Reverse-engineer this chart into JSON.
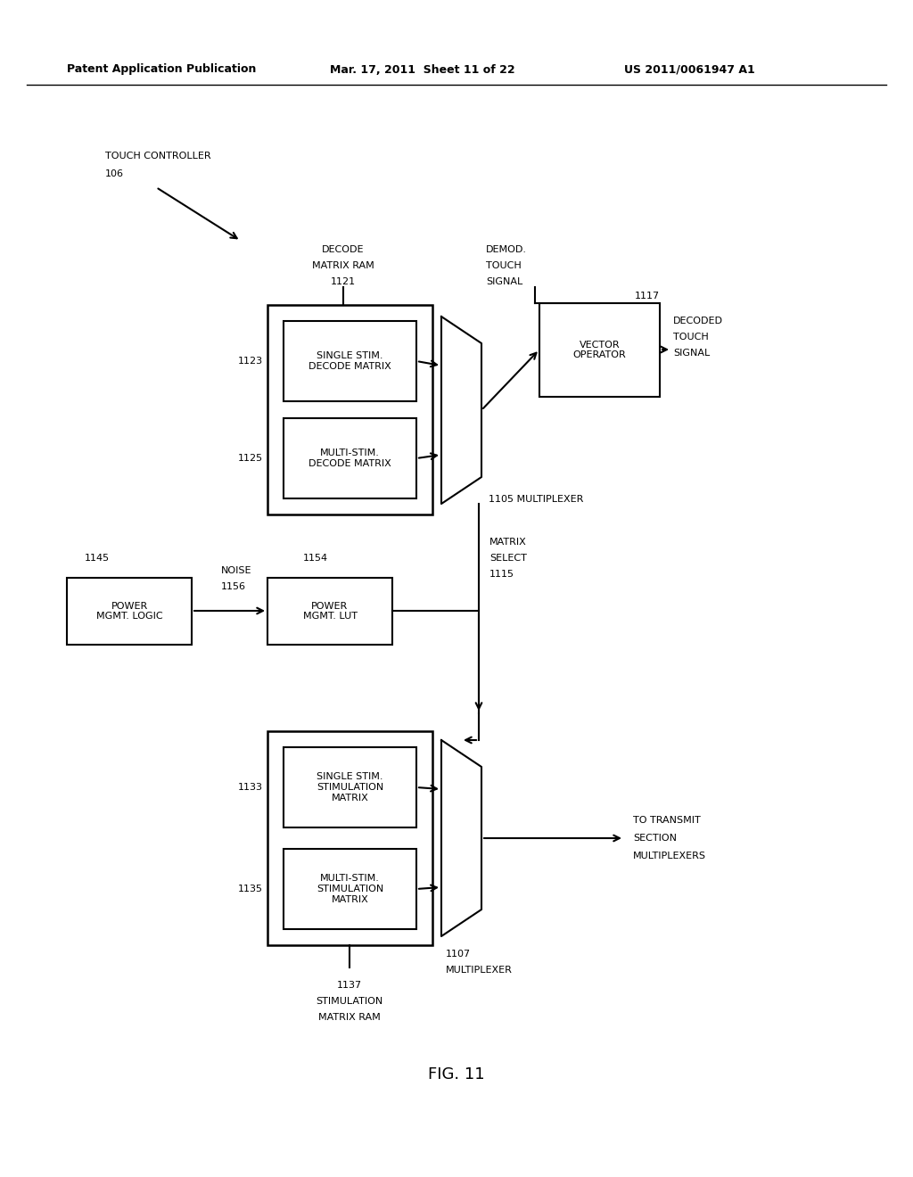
{
  "bg_color": "#ffffff",
  "header_text": "Patent Application Publication",
  "header_date": "Mar. 17, 2011  Sheet 11 of 22",
  "header_patent": "US 2011/0061947 A1",
  "figure_label": "FIG. 11",
  "single_stim_decode_label": "SINGLE STIM.\nDECODE MATRIX",
  "single_stim_decode_num": "1123",
  "multi_stim_decode_label": "MULTI-STIM.\nDECODE MATRIX",
  "multi_stim_decode_num": "1125",
  "vector_op_label": "VECTOR\nOPERATOR",
  "vector_op_num": "1117",
  "mux1105_label": "1105 MULTIPLEXER",
  "matrix_select_label": "MATRIX\nSELECT\n1115",
  "power_mgmt_logic_label": "POWER\nMGMT. LOGIC",
  "power_mgmt_logic_num": "1145",
  "noise_label": "NOISE\n1156",
  "power_mgmt_lut_label": "POWER\nMGMT. LUT",
  "power_mgmt_lut_num": "1154",
  "single_stim_stim_label": "SINGLE STIM.\nSTIMULATION\nMATRIX",
  "single_stim_stim_num": "1133",
  "multi_stim_stim_label": "MULTI-STIM.\nSTIMULATION\nMATRIX",
  "multi_stim_stim_num": "1135",
  "mux1107_label": "1107\nMULTIPLEXER",
  "stim_ram_label": "1137\nSTIMULATION\nMATRIX RAM",
  "to_transmit_label": "TO TRANSMIT\nSECTION\nMULTIPLEXERS"
}
